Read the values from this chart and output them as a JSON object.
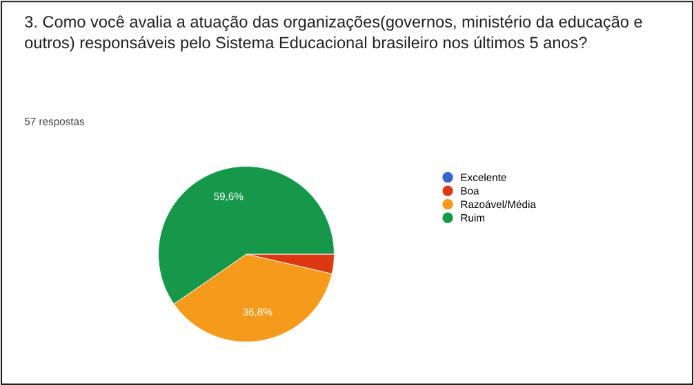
{
  "chart_data": {
    "type": "pie",
    "title": "3. Como você avalia a atuação das organizações(governos, ministério da educação e outros) responsáveis pelo Sistema Educacional brasileiro nos últimos 5 anos?",
    "subtitle": "57 respostas",
    "categories": [
      "Excelente",
      "Boa",
      "Razoável/Média",
      "Ruim"
    ],
    "values": [
      0,
      3.6,
      36.8,
      59.6
    ],
    "colors": [
      "#3366cc",
      "#dc3912",
      "#f69a1c",
      "#15984a"
    ],
    "value_labels": [
      null,
      null,
      "36,8%",
      "59,6%"
    ],
    "legend": "right"
  }
}
